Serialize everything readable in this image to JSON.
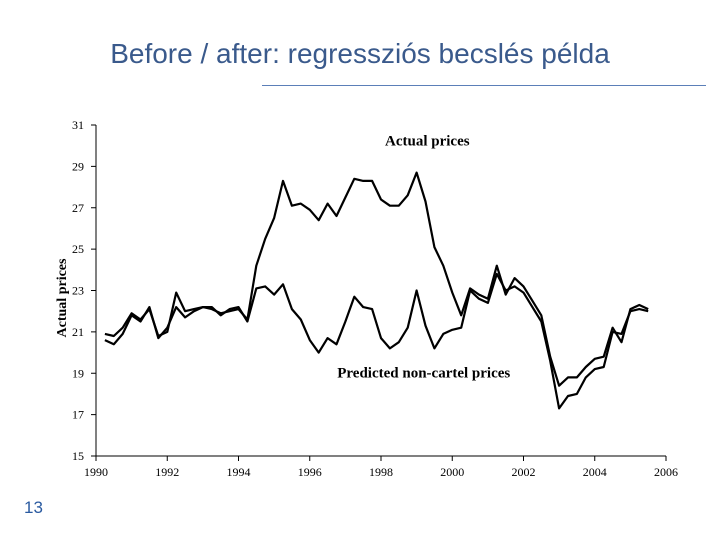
{
  "slide": {
    "title": "Before / after: regressziós becslés példa",
    "number": "13"
  },
  "chart_data": {
    "type": "line",
    "title": "",
    "xlabel": "",
    "ylabel": "Actual prices",
    "xlim": [
      1990,
      2006
    ],
    "ylim": [
      15,
      31
    ],
    "x_ticks": [
      "1990",
      "1992",
      "1994",
      "1996",
      "1998",
      "2000",
      "2002",
      "2004",
      "2006"
    ],
    "y_ticks": [
      "31",
      "29",
      "27",
      "25",
      "23",
      "21",
      "19",
      "17",
      "15"
    ],
    "annotations": [
      {
        "text": "Actual prices",
        "x": 1999.3,
        "y": 30.0
      },
      {
        "text": "Predicted non-cartel prices",
        "x": 1999.2,
        "y": 18.8
      }
    ],
    "series": [
      {
        "name": "Actual prices",
        "x": [
          1990.25,
          1990.5,
          1990.75,
          1991.0,
          1991.25,
          1991.5,
          1991.75,
          1992.0,
          1992.25,
          1992.5,
          1992.75,
          1993.0,
          1993.25,
          1993.5,
          1993.75,
          1994.0,
          1994.25,
          1994.5,
          1994.75,
          1995.0,
          1995.25,
          1995.5,
          1995.75,
          1996.0,
          1996.25,
          1996.5,
          1996.75,
          1997.0,
          1997.25,
          1997.5,
          1997.75,
          1998.0,
          1998.25,
          1998.5,
          1998.75,
          1999.0,
          1999.25,
          1999.5,
          1999.75,
          2000.0,
          2000.25,
          2000.5,
          2000.75,
          2001.0,
          2001.25,
          2001.5,
          2001.75,
          2002.0,
          2002.25,
          2002.5,
          2002.75,
          2003.0,
          2003.25,
          2003.5,
          2003.75,
          2004.0,
          2004.25,
          2004.5,
          2004.75,
          2005.0,
          2005.25,
          2005.5
        ],
        "values": [
          20.9,
          20.8,
          21.2,
          21.9,
          21.6,
          22.1,
          20.8,
          21.0,
          22.9,
          22.0,
          22.1,
          22.2,
          22.1,
          21.9,
          22.0,
          22.1,
          21.6,
          24.2,
          25.5,
          26.5,
          28.3,
          27.1,
          27.2,
          26.9,
          26.4,
          27.2,
          26.6,
          27.5,
          28.4,
          28.3,
          28.3,
          27.4,
          27.1,
          27.1,
          27.6,
          28.7,
          27.3,
          25.1,
          24.2,
          22.9,
          21.8,
          23.1,
          22.8,
          22.6,
          24.2,
          22.8,
          23.6,
          23.2,
          22.5,
          21.8,
          19.8,
          18.4,
          18.8,
          18.8,
          19.3,
          19.7,
          19.8,
          21.2,
          20.5,
          22.1,
          22.3,
          22.1
        ]
      },
      {
        "name": "Predicted non-cartel prices",
        "x": [
          1990.25,
          1990.5,
          1990.75,
          1991.0,
          1991.25,
          1991.5,
          1991.75,
          1992.0,
          1992.25,
          1992.5,
          1992.75,
          1993.0,
          1993.25,
          1993.5,
          1993.75,
          1994.0,
          1994.25,
          1994.5,
          1994.75,
          1995.0,
          1995.25,
          1995.5,
          1995.75,
          1996.0,
          1996.25,
          1996.5,
          1996.75,
          1997.0,
          1997.25,
          1997.5,
          1997.75,
          1998.0,
          1998.25,
          1998.5,
          1998.75,
          1999.0,
          1999.25,
          1999.5,
          1999.75,
          2000.0,
          2000.25,
          2000.5,
          2000.75,
          2001.0,
          2001.25,
          2001.5,
          2001.75,
          2002.0,
          2002.25,
          2002.5,
          2002.75,
          2003.0,
          2003.25,
          2003.5,
          2003.75,
          2004.0,
          2004.25,
          2004.5,
          2004.75,
          2005.0,
          2005.25,
          2005.5
        ],
        "values": [
          20.6,
          20.4,
          20.9,
          21.8,
          21.5,
          22.2,
          20.7,
          21.2,
          22.2,
          21.7,
          22.0,
          22.2,
          22.2,
          21.8,
          22.1,
          22.2,
          21.5,
          23.1,
          23.2,
          22.8,
          23.3,
          22.1,
          21.6,
          20.6,
          20.0,
          20.7,
          20.4,
          21.5,
          22.7,
          22.2,
          22.1,
          20.7,
          20.2,
          20.5,
          21.2,
          23.0,
          21.3,
          20.2,
          20.9,
          21.1,
          21.2,
          23.0,
          22.6,
          22.4,
          23.8,
          23.0,
          23.2,
          22.9,
          22.2,
          21.5,
          19.6,
          17.3,
          17.9,
          18.0,
          18.8,
          19.2,
          19.3,
          21.0,
          20.9,
          22.0,
          22.1,
          22.0
        ]
      }
    ]
  }
}
